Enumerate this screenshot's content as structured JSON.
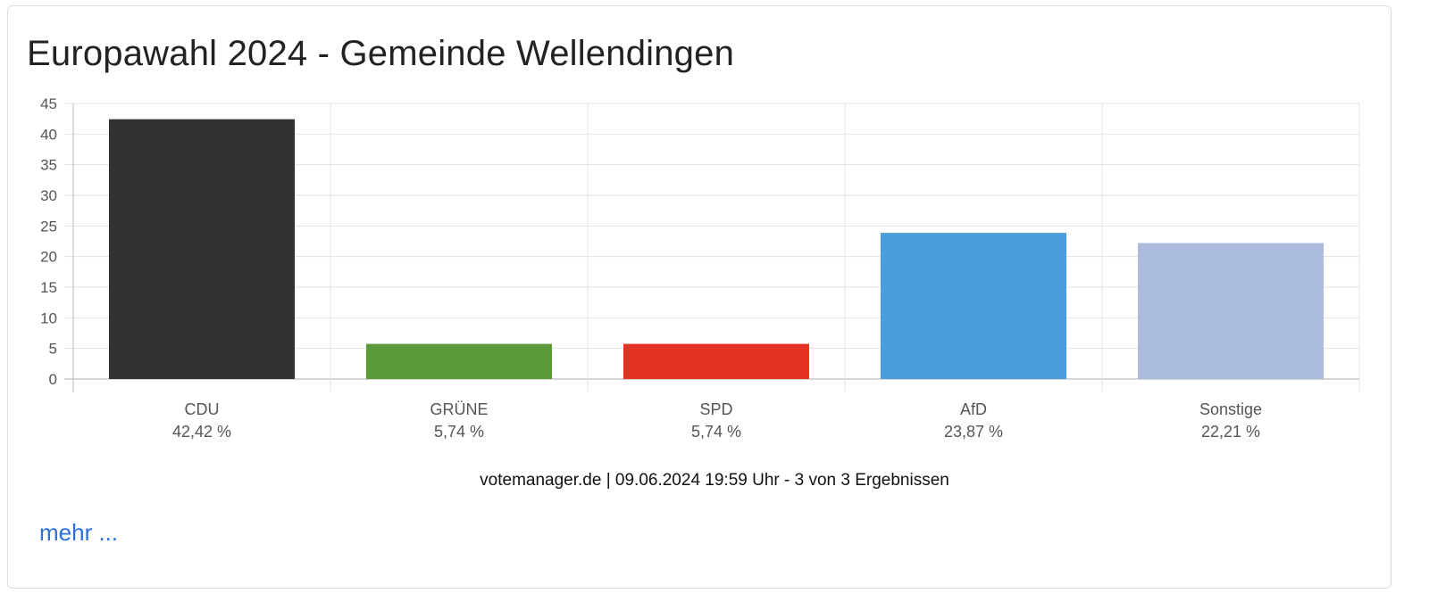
{
  "title": "Europawahl 2024 - Gemeinde Wellendingen",
  "chart_data": {
    "type": "bar",
    "categories": [
      "CDU",
      "GRÜNE",
      "SPD",
      "AfD",
      "Sonstige"
    ],
    "values": [
      42.42,
      5.74,
      5.74,
      23.87,
      22.21
    ],
    "value_labels": [
      "42,42 %",
      "5,74 %",
      "5,74 %",
      "23,87 %",
      "22,21 %"
    ],
    "colors": [
      "#323232",
      "#5a9a3a",
      "#e53224",
      "#4a9ed9",
      "#acbcdf"
    ],
    "ylim": [
      0,
      45
    ],
    "yticks": [
      0,
      5,
      10,
      15,
      20,
      25,
      30,
      35,
      40,
      45
    ],
    "grid": true,
    "xlabel": "",
    "ylabel": ""
  },
  "footer": "votemanager.de | 09.06.2024 19:59 Uhr - 3 von 3 Ergebnissen",
  "more_link": "mehr ..."
}
